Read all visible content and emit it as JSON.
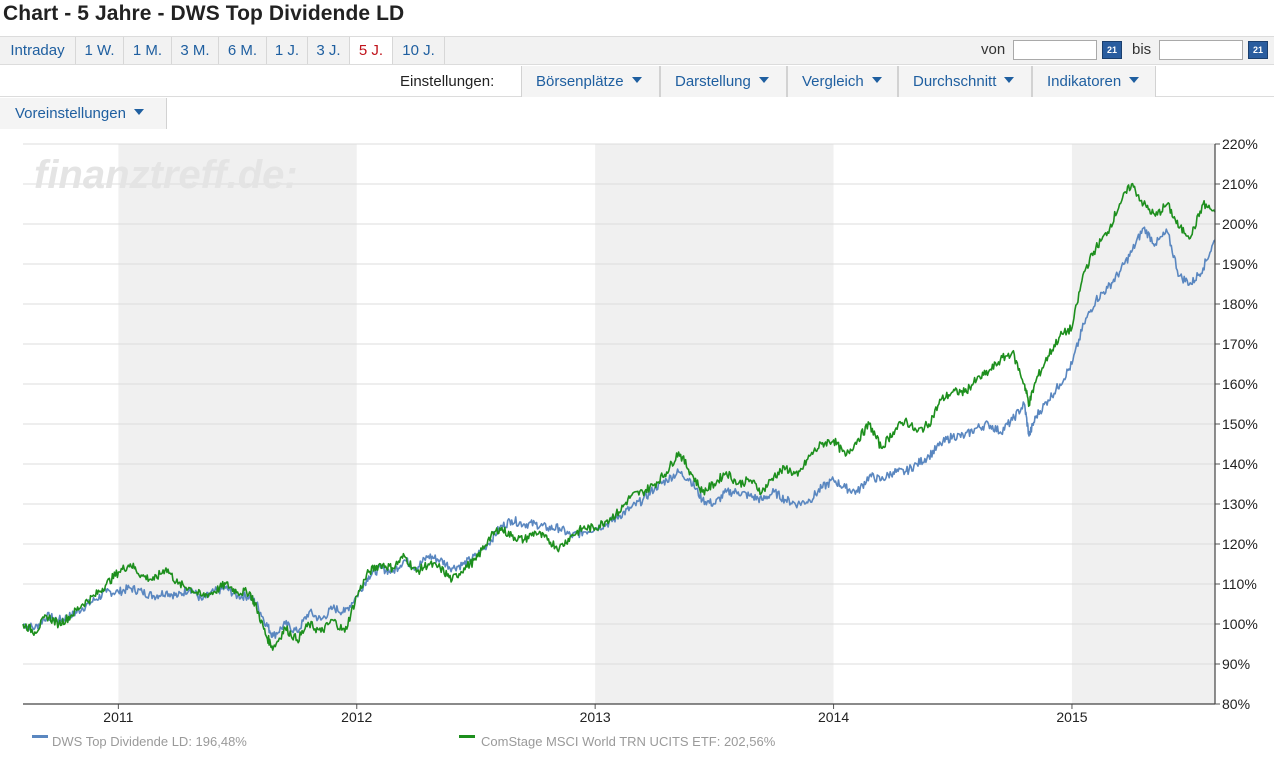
{
  "page": {
    "title": "Chart - 5 Jahre - DWS Top Dividende LD"
  },
  "tabs": [
    {
      "label": "Intraday",
      "active": false
    },
    {
      "label": "1 W.",
      "active": false
    },
    {
      "label": "1 M.",
      "active": false
    },
    {
      "label": "3 M.",
      "active": false
    },
    {
      "label": "6 M.",
      "active": false
    },
    {
      "label": "1 J.",
      "active": false
    },
    {
      "label": "3 J.",
      "active": false
    },
    {
      "label": "5 J.",
      "active": true
    },
    {
      "label": "10 J.",
      "active": false
    }
  ],
  "date_range": {
    "from_label": "von",
    "to_label": "bis",
    "from_value": "",
    "to_value": "",
    "cal_icon": "calendar-icon",
    "cal_text": "21"
  },
  "settings": {
    "label": "Einstellungen:",
    "menus": [
      "Börsenplätze",
      "Darstellung",
      "Vergleich",
      "Durchschnitt",
      "Indikatoren"
    ],
    "presets": "Voreinstellungen"
  },
  "colors": {
    "series1": "#5a87c0",
    "series2": "#1d8f1d",
    "link": "#1f5fa0",
    "active_tab": "#c0131b",
    "shade": "#f0f0f0"
  },
  "chart_data": {
    "type": "line",
    "watermark": "finanztreff.de:",
    "y_axis": {
      "min": 80,
      "max": 220,
      "step": 10,
      "unit": "%",
      "tick_labels": [
        "80%",
        "90%",
        "100%",
        "110%",
        "120%",
        "130%",
        "140%",
        "150%",
        "160%",
        "170%",
        "180%",
        "190%",
        "200%",
        "210%",
        "220%"
      ]
    },
    "x_axis": {
      "range": [
        2010.6,
        2015.6
      ],
      "ticks": [
        2011,
        2012,
        2013,
        2014,
        2015
      ],
      "tick_labels": [
        "2011",
        "2012",
        "2013",
        "2014",
        "2015"
      ],
      "shaded_years": [
        [
          2011,
          2012
        ],
        [
          2013,
          2014
        ],
        [
          2015,
          2015.6
        ]
      ]
    },
    "legend": [
      "DWS Top Dividende LD: 196,48%",
      "ComStage MSCI World TRN UCITS ETF: 202,56%"
    ],
    "series": [
      {
        "name": "DWS Top Dividende LD",
        "color": "#5a87c0",
        "points": [
          [
            2010.6,
            100
          ],
          [
            2010.65,
            99
          ],
          [
            2010.7,
            102
          ],
          [
            2010.75,
            101
          ],
          [
            2010.8,
            102
          ],
          [
            2010.85,
            104
          ],
          [
            2010.9,
            106
          ],
          [
            2010.95,
            108
          ],
          [
            2011.0,
            108
          ],
          [
            2011.05,
            109
          ],
          [
            2011.1,
            108
          ],
          [
            2011.15,
            107
          ],
          [
            2011.2,
            108
          ],
          [
            2011.25,
            107
          ],
          [
            2011.3,
            109
          ],
          [
            2011.35,
            106
          ],
          [
            2011.4,
            108
          ],
          [
            2011.45,
            109
          ],
          [
            2011.5,
            107
          ],
          [
            2011.55,
            107
          ],
          [
            2011.58,
            105
          ],
          [
            2011.62,
            100
          ],
          [
            2011.65,
            97
          ],
          [
            2011.7,
            100
          ],
          [
            2011.75,
            98
          ],
          [
            2011.8,
            103
          ],
          [
            2011.85,
            101
          ],
          [
            2011.9,
            104
          ],
          [
            2011.95,
            103
          ],
          [
            2012.0,
            107
          ],
          [
            2012.05,
            112
          ],
          [
            2012.1,
            114
          ],
          [
            2012.15,
            113
          ],
          [
            2012.2,
            116
          ],
          [
            2012.25,
            114
          ],
          [
            2012.3,
            117
          ],
          [
            2012.35,
            116
          ],
          [
            2012.4,
            114
          ],
          [
            2012.45,
            115
          ],
          [
            2012.5,
            117
          ],
          [
            2012.55,
            120
          ],
          [
            2012.6,
            124
          ],
          [
            2012.65,
            126
          ],
          [
            2012.7,
            125
          ],
          [
            2012.75,
            125
          ],
          [
            2012.8,
            124
          ],
          [
            2012.85,
            124
          ],
          [
            2012.9,
            122
          ],
          [
            2012.95,
            123
          ],
          [
            2013.0,
            124
          ],
          [
            2013.05,
            125
          ],
          [
            2013.1,
            127
          ],
          [
            2013.15,
            129
          ],
          [
            2013.2,
            131
          ],
          [
            2013.25,
            134
          ],
          [
            2013.3,
            136
          ],
          [
            2013.35,
            138
          ],
          [
            2013.4,
            136
          ],
          [
            2013.45,
            131
          ],
          [
            2013.5,
            130
          ],
          [
            2013.55,
            133
          ],
          [
            2013.6,
            133
          ],
          [
            2013.65,
            132
          ],
          [
            2013.7,
            131
          ],
          [
            2013.75,
            133
          ],
          [
            2013.8,
            131
          ],
          [
            2013.85,
            130
          ],
          [
            2013.9,
            131
          ],
          [
            2013.95,
            134
          ],
          [
            2014.0,
            136
          ],
          [
            2014.05,
            134
          ],
          [
            2014.1,
            133
          ],
          [
            2014.15,
            137
          ],
          [
            2014.2,
            136
          ],
          [
            2014.25,
            138
          ],
          [
            2014.3,
            138
          ],
          [
            2014.35,
            140
          ],
          [
            2014.4,
            142
          ],
          [
            2014.45,
            145
          ],
          [
            2014.5,
            147
          ],
          [
            2014.55,
            147
          ],
          [
            2014.6,
            149
          ],
          [
            2014.65,
            150
          ],
          [
            2014.7,
            148
          ],
          [
            2014.75,
            151
          ],
          [
            2014.8,
            155
          ],
          [
            2014.82,
            147
          ],
          [
            2014.85,
            152
          ],
          [
            2014.9,
            156
          ],
          [
            2014.95,
            160
          ],
          [
            2015.0,
            165
          ],
          [
            2015.05,
            175
          ],
          [
            2015.1,
            181
          ],
          [
            2015.15,
            184
          ],
          [
            2015.2,
            188
          ],
          [
            2015.25,
            193
          ],
          [
            2015.3,
            199
          ],
          [
            2015.35,
            195
          ],
          [
            2015.4,
            198
          ],
          [
            2015.45,
            187
          ],
          [
            2015.5,
            185
          ],
          [
            2015.55,
            189
          ],
          [
            2015.6,
            196
          ]
        ]
      },
      {
        "name": "ComStage MSCI World TRN UCITS ETF",
        "color": "#1d8f1d",
        "points": [
          [
            2010.6,
            100
          ],
          [
            2010.65,
            98
          ],
          [
            2010.7,
            102
          ],
          [
            2010.75,
            100
          ],
          [
            2010.8,
            102
          ],
          [
            2010.85,
            105
          ],
          [
            2010.9,
            107
          ],
          [
            2010.95,
            110
          ],
          [
            2011.0,
            113
          ],
          [
            2011.05,
            115
          ],
          [
            2011.1,
            112
          ],
          [
            2011.15,
            111
          ],
          [
            2011.2,
            114
          ],
          [
            2011.25,
            110
          ],
          [
            2011.3,
            109
          ],
          [
            2011.35,
            107
          ],
          [
            2011.4,
            108
          ],
          [
            2011.45,
            110
          ],
          [
            2011.5,
            108
          ],
          [
            2011.55,
            108
          ],
          [
            2011.58,
            104
          ],
          [
            2011.62,
            97
          ],
          [
            2011.65,
            94
          ],
          [
            2011.7,
            99
          ],
          [
            2011.75,
            96
          ],
          [
            2011.8,
            100
          ],
          [
            2011.85,
            98
          ],
          [
            2011.9,
            101
          ],
          [
            2011.95,
            98
          ],
          [
            2012.0,
            107
          ],
          [
            2012.05,
            113
          ],
          [
            2012.1,
            115
          ],
          [
            2012.15,
            114
          ],
          [
            2012.2,
            117
          ],
          [
            2012.25,
            113
          ],
          [
            2012.3,
            115
          ],
          [
            2012.35,
            114
          ],
          [
            2012.4,
            111
          ],
          [
            2012.45,
            114
          ],
          [
            2012.5,
            116
          ],
          [
            2012.55,
            121
          ],
          [
            2012.6,
            124
          ],
          [
            2012.65,
            122
          ],
          [
            2012.7,
            121
          ],
          [
            2012.75,
            123
          ],
          [
            2012.8,
            121
          ],
          [
            2012.85,
            119
          ],
          [
            2012.9,
            122
          ],
          [
            2012.95,
            124
          ],
          [
            2013.0,
            124
          ],
          [
            2013.05,
            126
          ],
          [
            2013.1,
            128
          ],
          [
            2013.15,
            132
          ],
          [
            2013.2,
            133
          ],
          [
            2013.25,
            135
          ],
          [
            2013.3,
            138
          ],
          [
            2013.35,
            143
          ],
          [
            2013.4,
            138
          ],
          [
            2013.45,
            133
          ],
          [
            2013.5,
            135
          ],
          [
            2013.55,
            138
          ],
          [
            2013.6,
            135
          ],
          [
            2013.65,
            136
          ],
          [
            2013.7,
            133
          ],
          [
            2013.75,
            137
          ],
          [
            2013.8,
            139
          ],
          [
            2013.85,
            137
          ],
          [
            2013.9,
            142
          ],
          [
            2013.95,
            145
          ],
          [
            2014.0,
            146
          ],
          [
            2014.05,
            142
          ],
          [
            2014.1,
            146
          ],
          [
            2014.15,
            150
          ],
          [
            2014.2,
            144
          ],
          [
            2014.25,
            148
          ],
          [
            2014.3,
            151
          ],
          [
            2014.35,
            148
          ],
          [
            2014.4,
            150
          ],
          [
            2014.45,
            156
          ],
          [
            2014.5,
            158
          ],
          [
            2014.55,
            158
          ],
          [
            2014.6,
            161
          ],
          [
            2014.65,
            163
          ],
          [
            2014.7,
            166
          ],
          [
            2014.75,
            168
          ],
          [
            2014.8,
            160
          ],
          [
            2014.82,
            155
          ],
          [
            2014.85,
            161
          ],
          [
            2014.9,
            167
          ],
          [
            2014.95,
            172
          ],
          [
            2015.0,
            174
          ],
          [
            2015.05,
            188
          ],
          [
            2015.1,
            194
          ],
          [
            2015.15,
            198
          ],
          [
            2015.2,
            205
          ],
          [
            2015.25,
            210
          ],
          [
            2015.3,
            205
          ],
          [
            2015.35,
            202
          ],
          [
            2015.4,
            205
          ],
          [
            2015.45,
            199
          ],
          [
            2015.5,
            197
          ],
          [
            2015.55,
            205
          ],
          [
            2015.6,
            203
          ]
        ]
      }
    ]
  }
}
